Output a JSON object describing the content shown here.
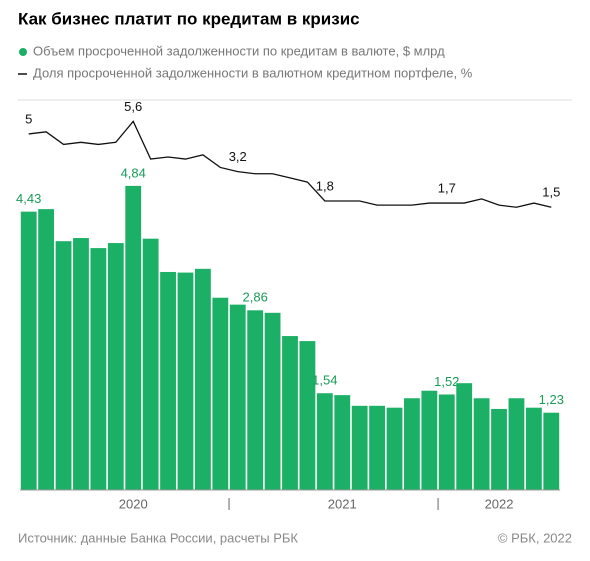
{
  "chart_data": {
    "type": "bar-line",
    "title": "Как бизнес платит по кредитам в кризис",
    "source": "Источник: данные Банка России, расчеты РБК",
    "copyright": "© РБК, 2022",
    "categories": [
      null,
      null,
      null,
      null,
      null,
      null,
      "2020",
      null,
      null,
      null,
      null,
      null,
      null,
      null,
      null,
      null,
      null,
      null,
      "2021",
      null,
      null,
      null,
      null,
      null,
      null,
      null,
      null,
      "2022",
      null,
      null,
      null
    ],
    "ylim": [
      0,
      6
    ],
    "y2lim": [
      -12,
      6
    ],
    "series": [
      {
        "name": "Объем просроченной задолженности по кредитам в валюте, $ млрд",
        "type": "bar",
        "color": "#1bb065",
        "values": [
          4.43,
          4.47,
          3.96,
          4.01,
          3.85,
          3.93,
          4.84,
          4.0,
          3.47,
          3.46,
          3.52,
          3.06,
          2.95,
          2.86,
          2.82,
          2.45,
          2.37,
          1.54,
          1.51,
          1.34,
          1.34,
          1.31,
          1.46,
          1.58,
          1.52,
          1.7,
          1.46,
          1.29,
          1.46,
          1.31,
          1.23
        ],
        "value_labels": [
          "4,43",
          null,
          null,
          null,
          null,
          null,
          "4,84",
          null,
          null,
          null,
          null,
          null,
          null,
          "2,86",
          null,
          null,
          null,
          "1,54",
          null,
          null,
          null,
          null,
          null,
          null,
          "1,52",
          null,
          null,
          null,
          null,
          null,
          "1,23"
        ]
      },
      {
        "name": "Доля просроченной задолженности в валютном кредитном портфеле, %",
        "type": "line",
        "color": "#111111",
        "axis": "y2",
        "values": [
          5.0,
          5.1,
          4.5,
          4.6,
          4.5,
          4.6,
          5.6,
          3.8,
          3.9,
          3.8,
          4.0,
          3.4,
          3.2,
          3.1,
          3.1,
          2.9,
          2.7,
          1.8,
          1.8,
          1.8,
          1.6,
          1.6,
          1.6,
          1.7,
          1.7,
          1.7,
          1.9,
          1.6,
          1.5,
          1.7,
          1.5
        ],
        "value_labels": [
          "5",
          null,
          null,
          null,
          null,
          null,
          "5,6",
          null,
          null,
          null,
          null,
          null,
          "3,2",
          null,
          null,
          null,
          null,
          "1,8",
          null,
          null,
          null,
          null,
          null,
          null,
          "1,7",
          null,
          null,
          null,
          null,
          null,
          "1,5"
        ]
      }
    ],
    "year_separators": [
      12,
      24
    ]
  }
}
